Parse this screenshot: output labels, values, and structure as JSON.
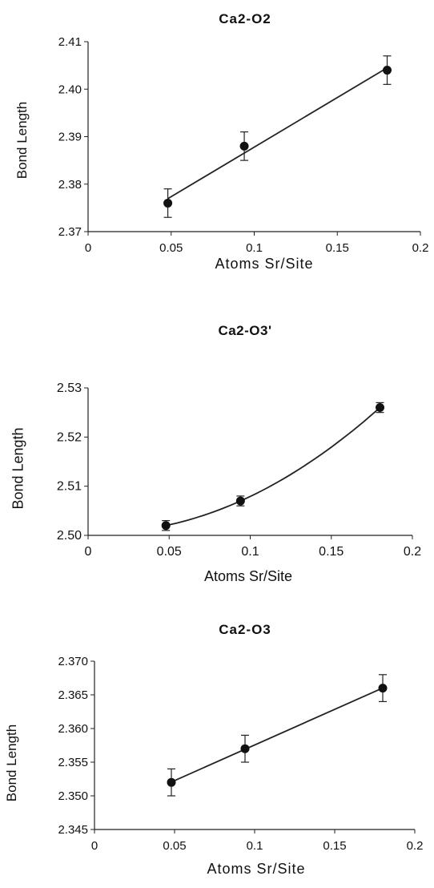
{
  "chart_data": [
    {
      "type": "scatter",
      "title": "Ca2-O2",
      "xlabel": "Atoms Sr/Site",
      "ylabel": "Bond Length",
      "xlim": [
        0,
        0.2
      ],
      "ylim": [
        2.37,
        2.41
      ],
      "xticks": [
        "0",
        "0.05",
        "0.1",
        "0.15",
        "0.2"
      ],
      "yticks": [
        "2.37",
        "2.38",
        "2.39",
        "2.40",
        "2.41"
      ],
      "x": [
        0.048,
        0.094,
        0.18
      ],
      "y": [
        2.376,
        2.388,
        2.404
      ],
      "yerr": [
        0.003,
        0.003,
        0.003
      ],
      "trendline": "linear",
      "grid": false,
      "marker_color": "#111111"
    },
    {
      "type": "scatter",
      "title": "Ca2-O3'",
      "xlabel": "Atoms Sr/Site",
      "ylabel": "Bond Length",
      "xlim": [
        0,
        0.2
      ],
      "ylim": [
        2.5,
        2.53
      ],
      "xticks": [
        "0",
        "0.05",
        "0.1",
        "0.15",
        "0.2"
      ],
      "yticks": [
        "2.50",
        "2.51",
        "2.52",
        "2.53"
      ],
      "x": [
        0.048,
        0.094,
        0.18
      ],
      "y": [
        2.502,
        2.507,
        2.526
      ],
      "yerr": [
        0.001,
        0.001,
        0.001
      ],
      "trendline": "quadratic",
      "grid": false,
      "marker_color": "#111111"
    },
    {
      "type": "scatter",
      "title": "Ca2-O3",
      "xlabel": "Atoms Sr/Site",
      "ylabel": "Bond Length",
      "xlim": [
        0,
        0.2
      ],
      "ylim": [
        2.345,
        2.37
      ],
      "xticks": [
        "0",
        "0.05",
        "0.1",
        "0.15",
        "0.2"
      ],
      "yticks": [
        "2.345",
        "2.350",
        "2.355",
        "2.360",
        "2.365",
        "2.370"
      ],
      "x": [
        0.048,
        0.094,
        0.18
      ],
      "y": [
        2.352,
        2.357,
        2.366
      ],
      "yerr": [
        0.002,
        0.002,
        0.002
      ],
      "trendline": "linear",
      "grid": false,
      "marker_color": "#111111"
    }
  ]
}
